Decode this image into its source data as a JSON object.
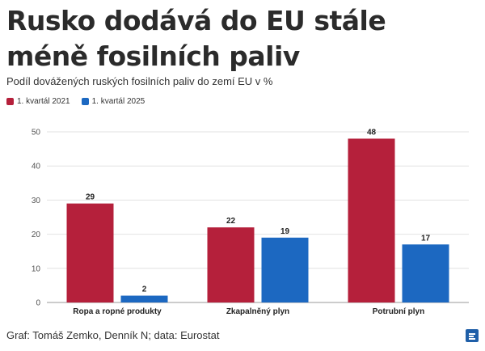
{
  "header": {
    "title": "Rusko dodává do EU stále méně fosilních paliv",
    "subtitle": "Podíl dovážených ruských fosilních paliv do zemí EU v %"
  },
  "footer": {
    "credit": "Graf: Tomáš Zemko, Denník N; data: Eurostat"
  },
  "colors": {
    "series_2021": "#b5203b",
    "series_2025": "#1c68c1"
  },
  "chart_data": {
    "type": "bar",
    "title": "Rusko dodává do EU stále méně fosilních paliv",
    "subtitle": "Podíl dovážených ruských fosilních paliv do zemí EU v %",
    "xlabel": "",
    "ylabel": "",
    "ylim": [
      0,
      50
    ],
    "yticks": [
      0,
      10,
      20,
      30,
      40,
      50
    ],
    "grid": true,
    "legend": "top-left",
    "categories": [
      "Ropa a ropné produkty",
      "Zkapalněný plyn",
      "Potrubní plyn"
    ],
    "series": [
      {
        "name": "1. kvartál 2021",
        "values": [
          29,
          22,
          48
        ],
        "color": "#b5203b"
      },
      {
        "name": "1. kvartál 2025",
        "values": [
          2,
          19,
          17
        ],
        "color": "#1c68c1"
      }
    ]
  }
}
